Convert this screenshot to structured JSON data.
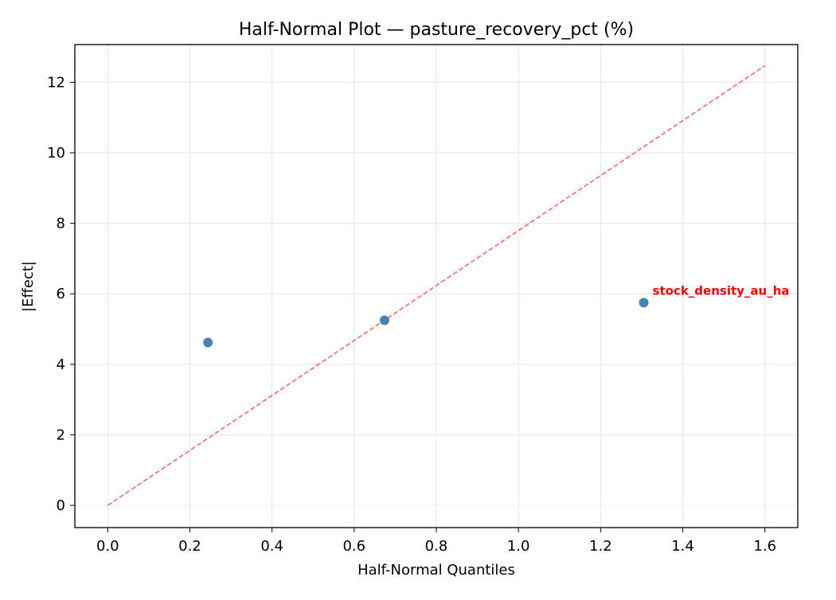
{
  "chart_data": {
    "type": "scatter",
    "title": "Half-Normal Plot — pasture_recovery_pct (%)",
    "xlabel": "Half-Normal Quantiles",
    "ylabel": "|Effect|",
    "xlim": [
      -0.08,
      1.68
    ],
    "ylim": [
      -0.63,
      13.07
    ],
    "xticks": [
      0.0,
      0.2,
      0.4,
      0.6,
      0.8,
      1.0,
      1.2,
      1.4,
      1.6
    ],
    "xtick_labels": [
      "0.0",
      "0.2",
      "0.4",
      "0.6",
      "0.8",
      "1.0",
      "1.2",
      "1.4",
      "1.6"
    ],
    "yticks": [
      0,
      2,
      4,
      6,
      8,
      10,
      12
    ],
    "ytick_labels": [
      "0",
      "2",
      "4",
      "6",
      "8",
      "10",
      "12"
    ],
    "grid": true,
    "points": [
      {
        "x": 0.244,
        "y": 4.62,
        "label": ""
      },
      {
        "x": 0.674,
        "y": 5.25,
        "label": ""
      },
      {
        "x": 1.305,
        "y": 5.75,
        "label": "stock_density_au_ha"
      }
    ],
    "reference_line": {
      "x": [
        0.0,
        1.6
      ],
      "y": [
        0.0,
        12.47
      ],
      "style": "dashed"
    },
    "colors": {
      "points": "#4682b4",
      "reference_line": "#ff6666",
      "annotation": "#ff0000",
      "grid": "#e6e6e6"
    }
  }
}
